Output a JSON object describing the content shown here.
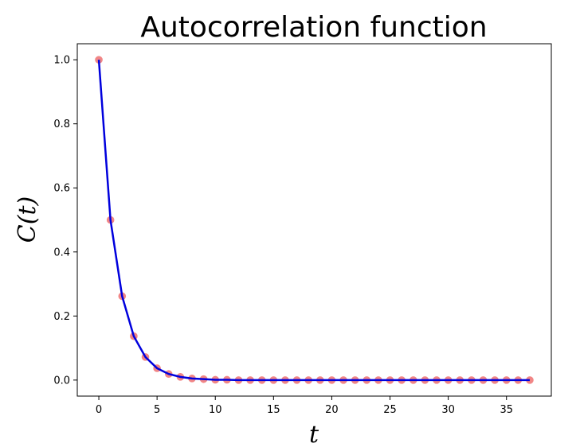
{
  "chart_data": {
    "type": "scatter",
    "title": "Autocorrelation function",
    "xlabel": "t",
    "ylabel": "C(t)",
    "xlim": [
      -1.85,
      38.85
    ],
    "ylim": [
      -0.05,
      1.05
    ],
    "xticks": [
      0,
      5,
      10,
      15,
      20,
      25,
      30,
      35
    ],
    "yticks": [
      0.0,
      0.2,
      0.4,
      0.6,
      0.8,
      1.0
    ],
    "grid": false,
    "series": [
      {
        "kind": "scatter",
        "color": "#f08080",
        "x": [
          0,
          1,
          2,
          3,
          4,
          5,
          6,
          7,
          8,
          9,
          10,
          11,
          12,
          13,
          14,
          15,
          16,
          17,
          18,
          19,
          20,
          21,
          22,
          23,
          24,
          25,
          26,
          27,
          28,
          29,
          30,
          31,
          32,
          33,
          34,
          35,
          36,
          37
        ],
        "y": [
          1.0,
          0.5,
          0.262,
          0.137,
          0.072,
          0.037,
          0.019,
          0.01,
          0.005,
          0.003,
          0.001,
          0.001,
          0,
          0,
          0,
          0,
          0,
          0,
          0,
          0,
          0,
          0,
          0,
          0,
          0,
          0,
          0,
          0,
          0,
          0,
          0,
          0,
          0,
          0,
          0,
          0,
          0,
          0
        ]
      },
      {
        "kind": "line",
        "color": "#0000dd",
        "x": [
          0,
          1,
          2,
          3,
          4,
          5,
          6,
          7,
          8,
          9,
          10,
          11,
          12,
          13,
          14,
          15,
          16,
          17,
          18,
          19,
          20,
          21,
          22,
          23,
          24,
          25,
          26,
          27,
          28,
          29,
          30,
          31,
          32,
          33,
          34,
          35,
          36,
          37
        ],
        "y": [
          1.0,
          0.5,
          0.262,
          0.137,
          0.072,
          0.037,
          0.019,
          0.01,
          0.005,
          0.003,
          0.001,
          0.001,
          0,
          0,
          0,
          0,
          0,
          0,
          0,
          0,
          0,
          0,
          0,
          0,
          0,
          0,
          0,
          0,
          0,
          0,
          0,
          0,
          0,
          0,
          0,
          0,
          0,
          0
        ]
      }
    ]
  }
}
